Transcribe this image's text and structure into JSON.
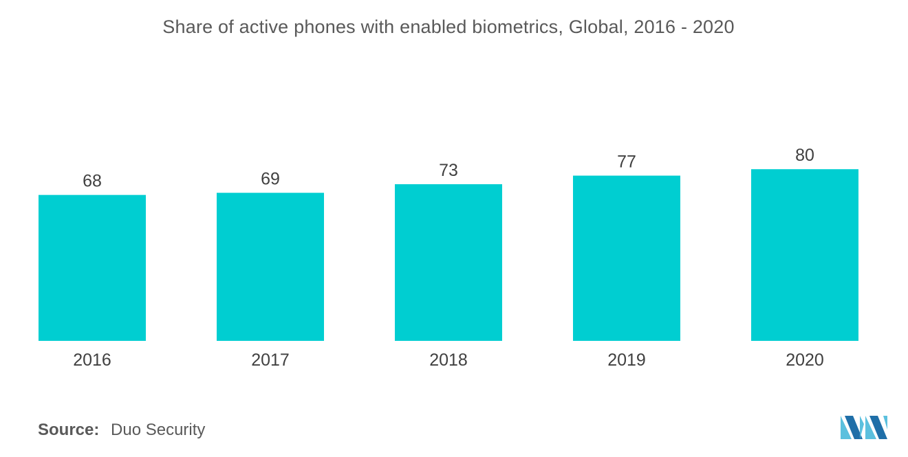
{
  "chart_data": {
    "type": "bar",
    "title": "Share of active phones with enabled biometrics, Global,  2016 - 2020",
    "categories": [
      "2016",
      "2017",
      "2018",
      "2019",
      "2020"
    ],
    "values": [
      68,
      69,
      73,
      77,
      80
    ],
    "xlabel": "",
    "ylabel": "",
    "ylim": [
      0,
      100
    ],
    "grid": false,
    "data_labels": true,
    "bar_color": "#00CED1"
  },
  "source": {
    "label": "Source:",
    "value": "Duo Security"
  },
  "logo": {
    "icon": "mordor-intelligence-logo-icon",
    "colors": [
      "#5BC0DE",
      "#1F6FA8"
    ]
  }
}
